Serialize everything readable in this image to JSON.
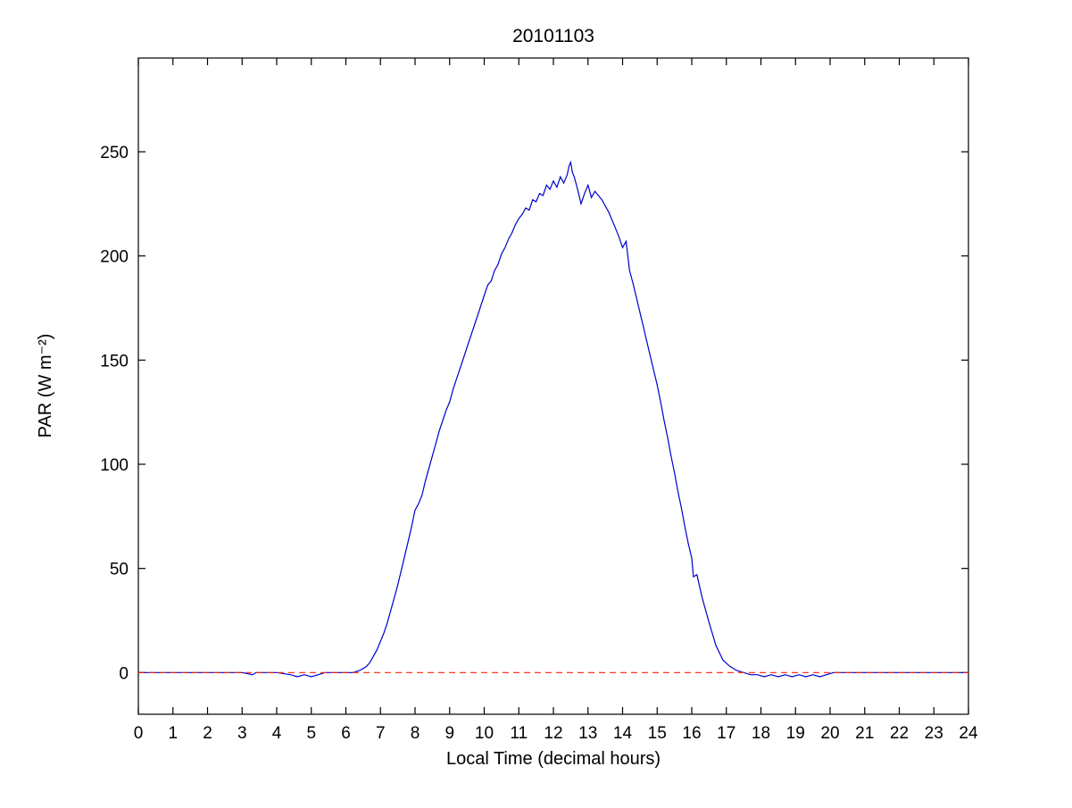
{
  "figure": {
    "background": "#ffffff"
  },
  "chart_data": {
    "type": "line",
    "title": "20101103",
    "xlabel": "Local Time (decimal hours)",
    "ylabel": "PAR (W m⁻²)",
    "xlim": [
      0,
      24
    ],
    "ylim": [
      -20,
      295
    ],
    "x_ticks": [
      0,
      1,
      2,
      3,
      4,
      5,
      6,
      7,
      8,
      9,
      10,
      11,
      12,
      13,
      14,
      15,
      16,
      17,
      18,
      19,
      20,
      21,
      22,
      23,
      24
    ],
    "y_ticks": [
      0,
      50,
      100,
      150,
      200,
      250
    ],
    "grid": false,
    "axis_color": "#000000",
    "zero_line": {
      "y": 0,
      "color": "#ff2200",
      "style": "dashed"
    },
    "series": [
      {
        "name": "PAR",
        "color": "#0000cc",
        "points": [
          [
            0,
            0
          ],
          [
            0.5,
            0
          ],
          [
            1,
            0
          ],
          [
            1.5,
            0
          ],
          [
            2,
            0
          ],
          [
            2.5,
            0
          ],
          [
            3,
            0
          ],
          [
            3.3,
            -1
          ],
          [
            3.4,
            0
          ],
          [
            4,
            0
          ],
          [
            4.4,
            -1
          ],
          [
            4.6,
            -2
          ],
          [
            4.8,
            -1
          ],
          [
            5.0,
            -2
          ],
          [
            5.2,
            -1
          ],
          [
            5.4,
            0
          ],
          [
            5.8,
            0
          ],
          [
            6.0,
            0
          ],
          [
            6.2,
            0
          ],
          [
            6.4,
            1
          ],
          [
            6.5,
            2
          ],
          [
            6.6,
            3
          ],
          [
            6.7,
            5
          ],
          [
            6.8,
            8
          ],
          [
            6.9,
            11
          ],
          [
            7.0,
            15
          ],
          [
            7.1,
            19
          ],
          [
            7.2,
            24
          ],
          [
            7.3,
            30
          ],
          [
            7.4,
            36
          ],
          [
            7.5,
            42
          ],
          [
            7.6,
            49
          ],
          [
            7.7,
            56
          ],
          [
            7.8,
            63
          ],
          [
            7.9,
            70
          ],
          [
            8.0,
            78
          ],
          [
            8.1,
            81
          ],
          [
            8.2,
            85
          ],
          [
            8.3,
            92
          ],
          [
            8.4,
            98
          ],
          [
            8.5,
            104
          ],
          [
            8.6,
            110
          ],
          [
            8.7,
            116
          ],
          [
            8.8,
            121
          ],
          [
            8.9,
            126
          ],
          [
            9.0,
            130
          ],
          [
            9.1,
            136
          ],
          [
            9.2,
            141
          ],
          [
            9.3,
            146
          ],
          [
            9.4,
            151
          ],
          [
            9.5,
            156
          ],
          [
            9.6,
            161
          ],
          [
            9.7,
            166
          ],
          [
            9.8,
            171
          ],
          [
            9.9,
            176
          ],
          [
            10.0,
            181
          ],
          [
            10.1,
            186
          ],
          [
            10.2,
            188
          ],
          [
            10.3,
            193
          ],
          [
            10.4,
            196
          ],
          [
            10.5,
            201
          ],
          [
            10.6,
            204
          ],
          [
            10.7,
            208
          ],
          [
            10.8,
            211
          ],
          [
            10.9,
            215
          ],
          [
            11.0,
            218
          ],
          [
            11.1,
            220
          ],
          [
            11.2,
            223
          ],
          [
            11.3,
            222
          ],
          [
            11.4,
            227
          ],
          [
            11.5,
            226
          ],
          [
            11.6,
            230
          ],
          [
            11.7,
            229
          ],
          [
            11.8,
            234
          ],
          [
            11.9,
            232
          ],
          [
            12.0,
            236
          ],
          [
            12.1,
            233
          ],
          [
            12.2,
            238
          ],
          [
            12.3,
            235
          ],
          [
            12.4,
            239
          ],
          [
            12.45,
            243
          ],
          [
            12.5,
            245
          ],
          [
            12.55,
            240
          ],
          [
            12.6,
            238
          ],
          [
            12.7,
            232
          ],
          [
            12.8,
            225
          ],
          [
            12.9,
            230
          ],
          [
            13.0,
            234
          ],
          [
            13.1,
            228
          ],
          [
            13.2,
            231
          ],
          [
            13.3,
            229
          ],
          [
            13.4,
            227
          ],
          [
            13.5,
            224
          ],
          [
            13.6,
            221
          ],
          [
            13.7,
            217
          ],
          [
            13.8,
            213
          ],
          [
            13.9,
            209
          ],
          [
            14.0,
            204
          ],
          [
            14.1,
            207
          ],
          [
            14.2,
            193
          ],
          [
            14.3,
            187
          ],
          [
            14.4,
            180
          ],
          [
            14.5,
            173
          ],
          [
            14.6,
            166
          ],
          [
            14.7,
            159
          ],
          [
            14.8,
            152
          ],
          [
            14.9,
            145
          ],
          [
            15.0,
            138
          ],
          [
            15.1,
            130
          ],
          [
            15.2,
            121
          ],
          [
            15.3,
            113
          ],
          [
            15.4,
            104
          ],
          [
            15.5,
            96
          ],
          [
            15.6,
            87
          ],
          [
            15.7,
            79
          ],
          [
            15.8,
            70
          ],
          [
            15.9,
            62
          ],
          [
            16.0,
            55
          ],
          [
            16.05,
            46
          ],
          [
            16.15,
            47
          ],
          [
            16.3,
            36
          ],
          [
            16.5,
            24
          ],
          [
            16.7,
            13
          ],
          [
            16.9,
            6
          ],
          [
            17.1,
            3
          ],
          [
            17.3,
            1
          ],
          [
            17.5,
            0
          ],
          [
            17.7,
            -1
          ],
          [
            17.9,
            -1
          ],
          [
            18.1,
            -2
          ],
          [
            18.3,
            -1
          ],
          [
            18.5,
            -2
          ],
          [
            18.7,
            -1
          ],
          [
            18.9,
            -2
          ],
          [
            19.1,
            -1
          ],
          [
            19.3,
            -2
          ],
          [
            19.5,
            -1
          ],
          [
            19.7,
            -2
          ],
          [
            19.9,
            -1
          ],
          [
            20.1,
            0
          ],
          [
            20.5,
            0
          ],
          [
            21,
            0
          ],
          [
            21.5,
            0
          ],
          [
            22,
            0
          ],
          [
            22.5,
            0
          ],
          [
            23,
            0
          ],
          [
            23.5,
            0
          ],
          [
            24,
            0
          ]
        ]
      }
    ]
  }
}
